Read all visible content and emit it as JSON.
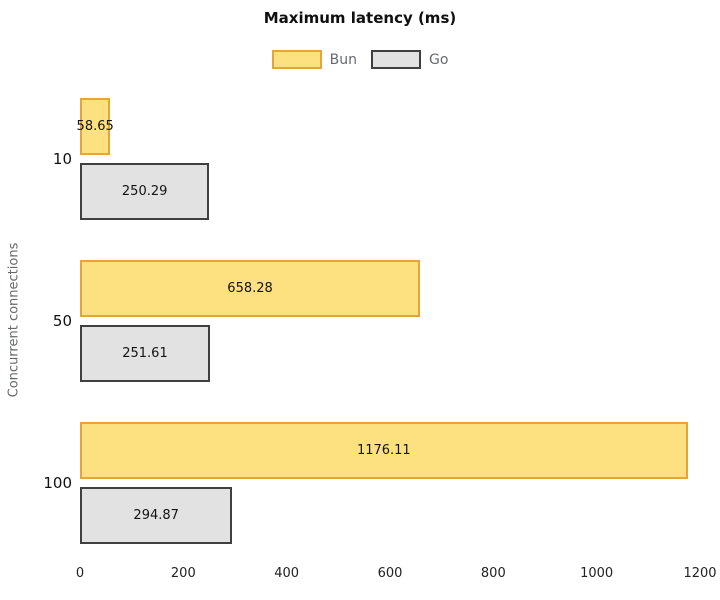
{
  "chart_data": {
    "type": "bar",
    "orientation": "horizontal",
    "title": "Maximum latency (ms)",
    "xlabel": "",
    "ylabel": "Concurrent connections",
    "categories": [
      "10",
      "50",
      "100"
    ],
    "series": [
      {
        "name": "Bun",
        "values": [
          58.65,
          658.28,
          1176.11
        ],
        "labels": [
          "58.65",
          "658.28",
          "1176.11"
        ],
        "fill": "#FDE181",
        "border": "#E9A33B"
      },
      {
        "name": "Go",
        "values": [
          250.29,
          251.61,
          294.87
        ],
        "labels": [
          "250.29",
          "251.61",
          "294.87"
        ],
        "fill": "#E2E2E2",
        "border": "#3F3F3F"
      }
    ],
    "xlim": [
      0,
      1200
    ],
    "x_ticks": [
      "0",
      "200",
      "400",
      "600",
      "800",
      "1000",
      "1200"
    ],
    "grid": false,
    "legend_position": "top-center",
    "value_label_position": "inside-center"
  }
}
